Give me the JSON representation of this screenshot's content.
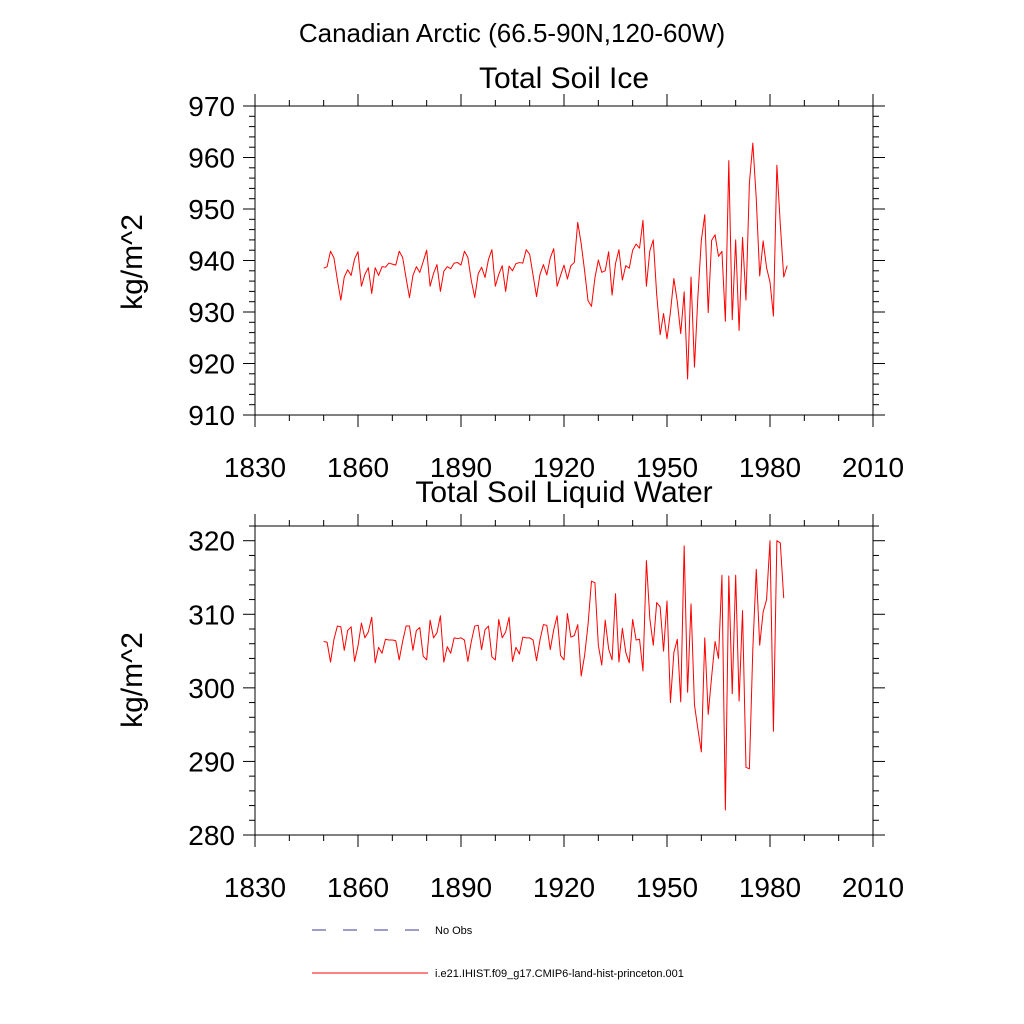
{
  "figure": {
    "title": "Canadian Arctic (66.5-90N,120-60W)"
  },
  "legend": {
    "position": "bottom",
    "entries": [
      {
        "label": "No Obs",
        "style": "dashed",
        "color": "#3b3b8f"
      },
      {
        "label": "i.e21.IHIST.f09_g17.CMIP6-land-hist-princeton.001",
        "style": "solid",
        "color": "#ff0000"
      }
    ]
  },
  "chart_data": [
    {
      "type": "line",
      "title": "Total Soil Ice",
      "xlabel": "",
      "ylabel": "kg/m^2",
      "xlim": [
        1830,
        2010
      ],
      "ylim": [
        910,
        970
      ],
      "xticks": [
        1830,
        1860,
        1890,
        1920,
        1950,
        1980,
        2010
      ],
      "yticks": [
        910,
        920,
        930,
        940,
        950,
        960,
        970
      ],
      "grid": false,
      "x_start": 1850,
      "series": [
        {
          "name": "i.e21.IHIST.f09_g17.CMIP6-land-hist-princeton.001",
          "color": "#ff0000",
          "values": [
            938.5,
            938.8,
            941.8,
            940.5,
            936.2,
            932.3,
            936.8,
            938.2,
            937.1,
            940.3,
            941.7,
            935.0,
            937.3,
            938.6,
            933.6,
            938.6,
            937.1,
            938.8,
            938.7,
            939.5,
            939.3,
            939.1,
            941.8,
            940.6,
            936.6,
            932.8,
            937.1,
            938.8,
            937.7,
            939.8,
            942.0,
            935.0,
            937.5,
            939.2,
            934.0,
            937.9,
            938.8,
            938.4,
            939.5,
            939.6,
            939.1,
            941.8,
            940.6,
            936.1,
            932.8,
            937.4,
            938.7,
            936.7,
            940.2,
            942.1,
            935.0,
            937.3,
            939.0,
            934.0,
            938.9,
            938.0,
            939.4,
            939.6,
            939.5,
            942.1,
            941.2,
            937.1,
            933.0,
            937.3,
            939.2,
            937.2,
            940.5,
            942.3,
            935.0,
            937.1,
            939.1,
            936.4,
            939.0,
            939.6,
            947.4,
            943.3,
            938.0,
            932.2,
            931.1,
            936.6,
            940.1,
            937.7,
            938.0,
            941.7,
            933.3,
            939.4,
            942.1,
            936.2,
            939.0,
            938.5,
            942.0,
            943.2,
            942.4,
            947.8,
            935.0,
            941.9,
            944.0,
            933.4,
            925.6,
            929.7,
            924.8,
            930.0,
            936.5,
            932.0,
            925.8,
            933.9,
            917.0,
            936.8,
            919.3,
            933.0,
            943.9,
            948.9,
            929.9,
            943.9,
            945.0,
            940.8,
            941.8,
            928.2,
            959.4,
            928.5,
            944.0,
            926.4,
            944.5,
            932.3,
            955.0,
            962.8,
            952.0,
            937.0,
            943.8,
            938.6,
            935.8,
            929.2,
            958.5,
            947.0,
            936.8,
            939.0
          ]
        }
      ]
    },
    {
      "type": "line",
      "title": "Total Soil Liquid Water",
      "xlabel": "",
      "ylabel": "kg/m^2",
      "xlim": [
        1830,
        2010
      ],
      "ylim": [
        280,
        322
      ],
      "xticks": [
        1830,
        1860,
        1890,
        1920,
        1950,
        1980,
        2010
      ],
      "yticks": [
        280,
        290,
        300,
        310,
        320
      ],
      "grid": false,
      "x_start": 1850,
      "series": [
        {
          "name": "i.e21.IHIST.f09_g17.CMIP6-land-hist-princeton.001",
          "color": "#ff0000",
          "values": [
            306.3,
            306.2,
            303.5,
            306.6,
            308.4,
            308.3,
            305.1,
            307.8,
            308.3,
            303.6,
            305.7,
            308.8,
            306.8,
            307.6,
            309.6,
            303.4,
            305.5,
            304.7,
            306.6,
            306.5,
            306.5,
            306.4,
            303.8,
            306.3,
            308.4,
            308.4,
            305.1,
            307.8,
            308.2,
            304.3,
            303.8,
            309.2,
            306.8,
            307.5,
            309.8,
            303.5,
            305.6,
            304.7,
            306.8,
            306.7,
            306.8,
            306.5,
            303.6,
            306.3,
            308.4,
            308.5,
            305.2,
            307.9,
            308.4,
            304.2,
            303.8,
            309.3,
            306.8,
            307.6,
            309.6,
            303.6,
            305.5,
            304.6,
            306.9,
            306.8,
            306.8,
            306.5,
            303.7,
            306.5,
            308.6,
            308.5,
            305.2,
            307.9,
            309.8,
            304.4,
            303.8,
            310.1,
            306.9,
            307.1,
            308.6,
            301.6,
            304.4,
            308.6,
            314.5,
            314.3,
            305.8,
            303.1,
            309.2,
            305.3,
            303.8,
            312.8,
            303.5,
            308.1,
            304.8,
            303.4,
            309.3,
            306.5,
            306.6,
            302.3,
            317.3,
            309.4,
            305.8,
            311.6,
            311.0,
            305.0,
            311.8,
            298.0,
            304.8,
            306.6,
            298.1,
            319.3,
            299.4,
            311.4,
            297.7,
            294.4,
            291.3,
            306.8,
            296.4,
            301.5,
            306.3,
            304.0,
            315.3,
            283.4,
            315.2,
            299.2,
            315.3,
            298.2,
            310.5,
            289.2,
            289.0,
            305.3,
            316.1,
            305.8,
            310.3,
            312.0,
            320.0,
            294.1,
            320.0,
            319.7,
            312.2
          ]
        }
      ]
    }
  ]
}
